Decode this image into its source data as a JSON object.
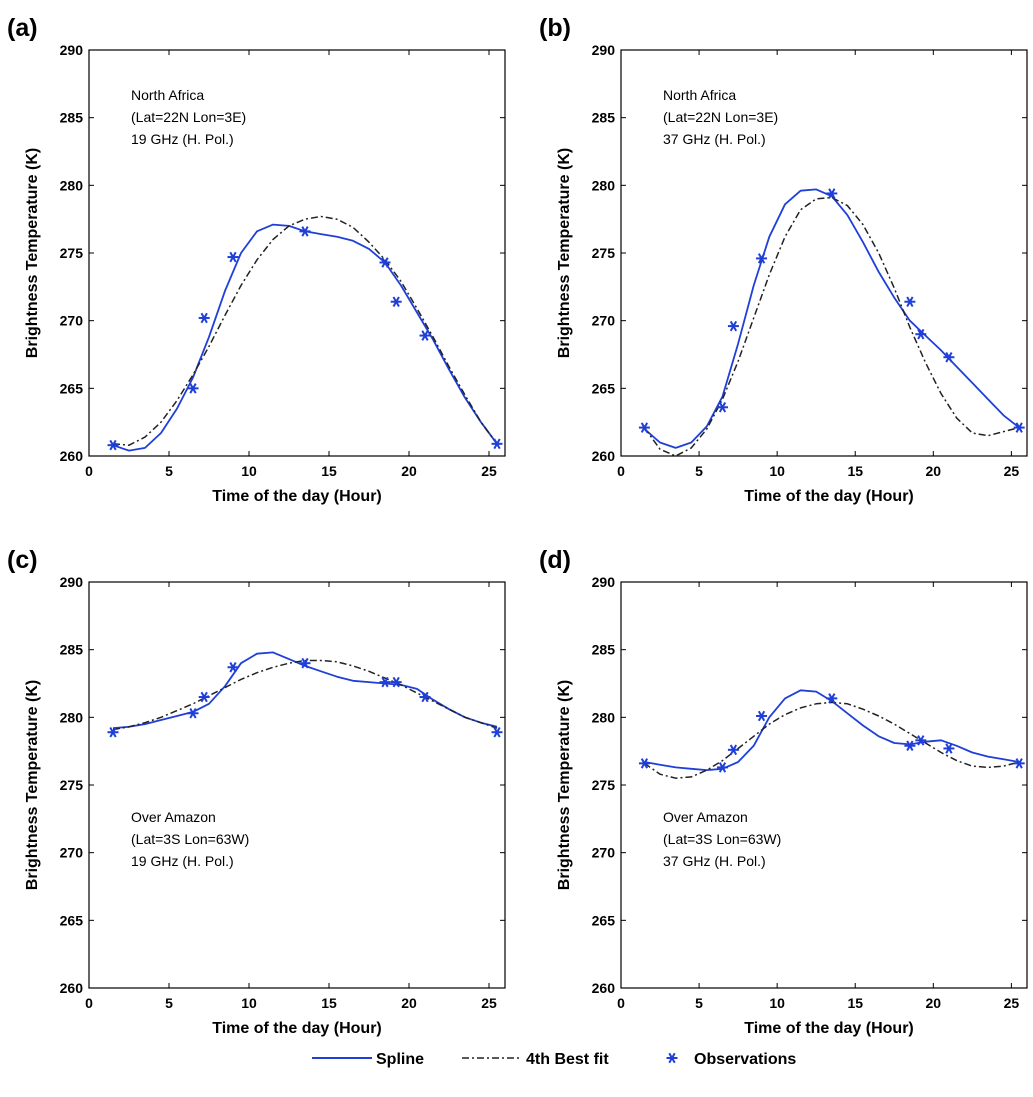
{
  "chart_data": [
    {
      "type": "line",
      "panel_label": "(a)",
      "xlabel": "Time of the day (Hour)",
      "ylabel": "Brightness Temperature (K)",
      "xlim": [
        0,
        26
      ],
      "ylim": [
        260,
        290
      ],
      "xticks": [
        0,
        5,
        10,
        15,
        20,
        25
      ],
      "yticks": [
        260,
        265,
        270,
        275,
        280,
        285,
        290
      ],
      "annotation": [
        "North Africa",
        "(Lat=22N Lon=3E)",
        "19 GHz (H. Pol.)"
      ],
      "annotation_position": "top-left",
      "series": [
        {
          "name": "Spline",
          "style": "solid",
          "color": "#1f3fd8",
          "x": [
            1.5,
            2.5,
            3.5,
            4.5,
            5.5,
            6.5,
            7.5,
            8.5,
            9.5,
            10.5,
            11.5,
            12.5,
            13.5,
            14.5,
            15.5,
            16.5,
            17.5,
            18.5,
            19.5,
            20.5,
            21.5,
            22.5,
            23.5,
            24.5,
            25.5
          ],
          "y": [
            260.8,
            260.4,
            260.6,
            261.7,
            263.5,
            265.8,
            268.8,
            272.2,
            275.0,
            276.6,
            277.1,
            277.0,
            276.6,
            276.4,
            276.2,
            275.9,
            275.3,
            274.3,
            272.6,
            270.6,
            268.6,
            266.4,
            264.3,
            262.5,
            260.9
          ]
        },
        {
          "name": "4th Best fit",
          "style": "dashdot",
          "color": "#222222",
          "x": [
            1.5,
            2.5,
            3.5,
            4.5,
            5.5,
            6.5,
            7.5,
            8.5,
            9.5,
            10.5,
            11.5,
            12.5,
            13.5,
            14.5,
            15.5,
            16.5,
            17.5,
            18.5,
            19.5,
            20.5,
            21.5,
            22.5,
            23.5,
            24.5,
            25.5
          ],
          "y": [
            260.9,
            260.8,
            261.4,
            262.5,
            264.1,
            266.0,
            268.1,
            270.4,
            272.6,
            274.5,
            276.0,
            277.0,
            277.5,
            277.7,
            277.5,
            276.9,
            275.8,
            274.5,
            272.9,
            270.9,
            268.8,
            266.6,
            264.5,
            262.5,
            260.9
          ]
        },
        {
          "name": "Observations",
          "style": "marker",
          "color": "#1f3fd8",
          "x": [
            1.5,
            6.5,
            7.2,
            9.0,
            13.5,
            18.5,
            19.2,
            21.0,
            25.5
          ],
          "y": [
            260.8,
            265.0,
            270.2,
            274.7,
            276.6,
            274.3,
            271.4,
            268.9,
            260.9
          ]
        }
      ]
    },
    {
      "type": "line",
      "panel_label": "(b)",
      "xlabel": "Time of the day (Hour)",
      "ylabel": "Brightness Temperature (K)",
      "xlim": [
        0,
        26
      ],
      "ylim": [
        260,
        290
      ],
      "xticks": [
        0,
        5,
        10,
        15,
        20,
        25
      ],
      "yticks": [
        260,
        265,
        270,
        275,
        280,
        285,
        290
      ],
      "annotation": [
        "North Africa",
        "(Lat=22N Lon=3E)",
        "37 GHz (H. Pol.)"
      ],
      "annotation_position": "top-left",
      "series": [
        {
          "name": "Spline",
          "style": "solid",
          "color": "#1f3fd8",
          "x": [
            1.5,
            2.5,
            3.5,
            4.5,
            5.5,
            6.5,
            7.5,
            8.5,
            9.5,
            10.5,
            11.5,
            12.5,
            13.5,
            14.5,
            15.5,
            16.5,
            17.5,
            18.5,
            19.5,
            20.5,
            21.5,
            22.5,
            23.5,
            24.5,
            25.5
          ],
          "y": [
            262.0,
            261.0,
            260.6,
            261.0,
            262.2,
            264.4,
            268.3,
            272.6,
            276.2,
            278.6,
            279.6,
            279.7,
            279.2,
            277.8,
            275.8,
            273.6,
            271.7,
            270.0,
            268.9,
            267.8,
            266.6,
            265.4,
            264.2,
            263.0,
            262.1
          ]
        },
        {
          "name": "4th Best fit",
          "style": "dashdot",
          "color": "#222222",
          "x": [
            1.5,
            2.5,
            3.5,
            4.5,
            5.5,
            6.5,
            7.5,
            8.5,
            9.5,
            10.5,
            11.5,
            12.5,
            13.5,
            14.5,
            15.5,
            16.5,
            17.5,
            18.5,
            19.5,
            20.5,
            21.5,
            22.5,
            23.5,
            24.5,
            25.5
          ],
          "y": [
            262.1,
            260.5,
            260.0,
            260.6,
            262.0,
            264.2,
            267.0,
            270.2,
            273.4,
            276.2,
            278.2,
            279.0,
            279.1,
            278.5,
            277.1,
            275.0,
            272.4,
            269.5,
            266.9,
            264.6,
            262.8,
            261.7,
            261.5,
            261.8,
            262.1
          ]
        },
        {
          "name": "Observations",
          "style": "marker",
          "color": "#1f3fd8",
          "x": [
            1.5,
            6.5,
            7.2,
            9.0,
            13.5,
            18.5,
            19.2,
            21.0,
            25.5
          ],
          "y": [
            262.1,
            263.6,
            269.6,
            274.6,
            279.4,
            271.4,
            269.0,
            267.3,
            262.1
          ]
        }
      ]
    },
    {
      "type": "line",
      "panel_label": "(c)",
      "xlabel": "Time of the day (Hour)",
      "ylabel": "Brightness Temperature (K)",
      "xlim": [
        0,
        26
      ],
      "ylim": [
        260,
        290
      ],
      "xticks": [
        0,
        5,
        10,
        15,
        20,
        25
      ],
      "yticks": [
        260,
        265,
        270,
        275,
        280,
        285,
        290
      ],
      "annotation": [
        "Over Amazon",
        "(Lat=3S Lon=63W)",
        "19 GHz (H. Pol.)"
      ],
      "annotation_position": "middle-left",
      "series": [
        {
          "name": "Spline",
          "style": "solid",
          "color": "#1f3fd8",
          "x": [
            1.5,
            2.5,
            3.5,
            4.5,
            5.5,
            6.5,
            7.5,
            8.5,
            9.5,
            10.5,
            11.5,
            12.5,
            13.5,
            14.5,
            15.5,
            16.5,
            17.5,
            18.5,
            19.5,
            20.5,
            21.5,
            22.5,
            23.5,
            24.5,
            25.5
          ],
          "y": [
            279.2,
            279.3,
            279.5,
            279.8,
            280.1,
            280.4,
            281.0,
            282.3,
            284.0,
            284.7,
            284.8,
            284.3,
            283.8,
            283.4,
            283.0,
            282.7,
            282.6,
            282.5,
            282.4,
            282.1,
            281.3,
            280.6,
            280.0,
            279.6,
            279.3
          ]
        },
        {
          "name": "4th Best fit",
          "style": "dashdot",
          "color": "#222222",
          "x": [
            1.5,
            2.5,
            3.5,
            4.5,
            5.5,
            6.5,
            7.5,
            8.5,
            9.5,
            10.5,
            11.5,
            12.5,
            13.5,
            14.5,
            15.5,
            16.5,
            17.5,
            18.5,
            19.5,
            20.5,
            21.5,
            22.5,
            23.5,
            24.5,
            25.5
          ],
          "y": [
            279.1,
            279.3,
            279.6,
            280.0,
            280.5,
            281.0,
            281.6,
            282.2,
            282.8,
            283.3,
            283.7,
            284.0,
            284.2,
            284.2,
            284.1,
            283.8,
            283.4,
            282.9,
            282.4,
            281.8,
            281.2,
            280.6,
            280.0,
            279.6,
            279.2
          ]
        },
        {
          "name": "Observations",
          "style": "marker",
          "color": "#1f3fd8",
          "x": [
            1.5,
            6.5,
            7.2,
            9.0,
            13.5,
            18.5,
            19.2,
            21.0,
            25.5
          ],
          "y": [
            278.9,
            280.3,
            281.5,
            283.7,
            284.0,
            282.6,
            282.6,
            281.5,
            278.9
          ]
        }
      ]
    },
    {
      "type": "line",
      "panel_label": "(d)",
      "xlabel": "Time of the day (Hour)",
      "ylabel": "Brightness Temperature (K)",
      "xlim": [
        0,
        26
      ],
      "ylim": [
        260,
        290
      ],
      "xticks": [
        0,
        5,
        10,
        15,
        20,
        25
      ],
      "yticks": [
        260,
        265,
        270,
        275,
        280,
        285,
        290
      ],
      "annotation": [
        "Over Amazon",
        "(Lat=3S Lon=63W)",
        "37 GHz (H. Pol.)"
      ],
      "annotation_position": "middle-left",
      "series": [
        {
          "name": "Spline",
          "style": "solid",
          "color": "#1f3fd8",
          "x": [
            1.5,
            2.5,
            3.5,
            4.5,
            5.5,
            6.5,
            7.5,
            8.5,
            9.5,
            10.5,
            11.5,
            12.5,
            13.5,
            14.5,
            15.5,
            16.5,
            17.5,
            18.5,
            19.5,
            20.5,
            21.5,
            22.5,
            23.5,
            24.5,
            25.5
          ],
          "y": [
            276.7,
            276.5,
            276.3,
            276.2,
            276.1,
            276.2,
            276.7,
            277.9,
            280.0,
            281.4,
            282.0,
            281.9,
            281.2,
            280.3,
            279.4,
            278.6,
            278.1,
            278.0,
            278.2,
            278.3,
            277.9,
            277.4,
            277.1,
            276.9,
            276.7
          ]
        },
        {
          "name": "4th Best fit",
          "style": "dashdot",
          "color": "#222222",
          "x": [
            1.5,
            2.5,
            3.5,
            4.5,
            5.5,
            6.5,
            7.5,
            8.5,
            9.5,
            10.5,
            11.5,
            12.5,
            13.5,
            14.5,
            15.5,
            16.5,
            17.5,
            18.5,
            19.5,
            20.5,
            21.5,
            22.5,
            23.5,
            24.5,
            25.5
          ],
          "y": [
            276.6,
            275.8,
            275.5,
            275.6,
            276.1,
            276.8,
            277.7,
            278.6,
            279.5,
            280.2,
            280.7,
            281.0,
            281.1,
            281.0,
            280.6,
            280.1,
            279.5,
            278.8,
            278.1,
            277.4,
            276.8,
            276.4,
            276.3,
            276.4,
            276.7
          ]
        },
        {
          "name": "Observations",
          "style": "marker",
          "color": "#1f3fd8",
          "x": [
            1.5,
            6.5,
            7.2,
            9.0,
            13.5,
            18.5,
            19.2,
            21.0,
            25.5
          ],
          "y": [
            276.6,
            276.3,
            277.6,
            280.1,
            281.4,
            277.9,
            278.3,
            277.7,
            276.6
          ]
        }
      ]
    }
  ],
  "legend": {
    "items": [
      {
        "label": "Spline",
        "style": "solid",
        "color": "#1f3fd8"
      },
      {
        "label": "4th Best fit",
        "style": "dashdot",
        "color": "#222222"
      },
      {
        "label": "Observations",
        "style": "marker",
        "color": "#1f3fd8"
      }
    ],
    "placement": "bottom-center"
  }
}
